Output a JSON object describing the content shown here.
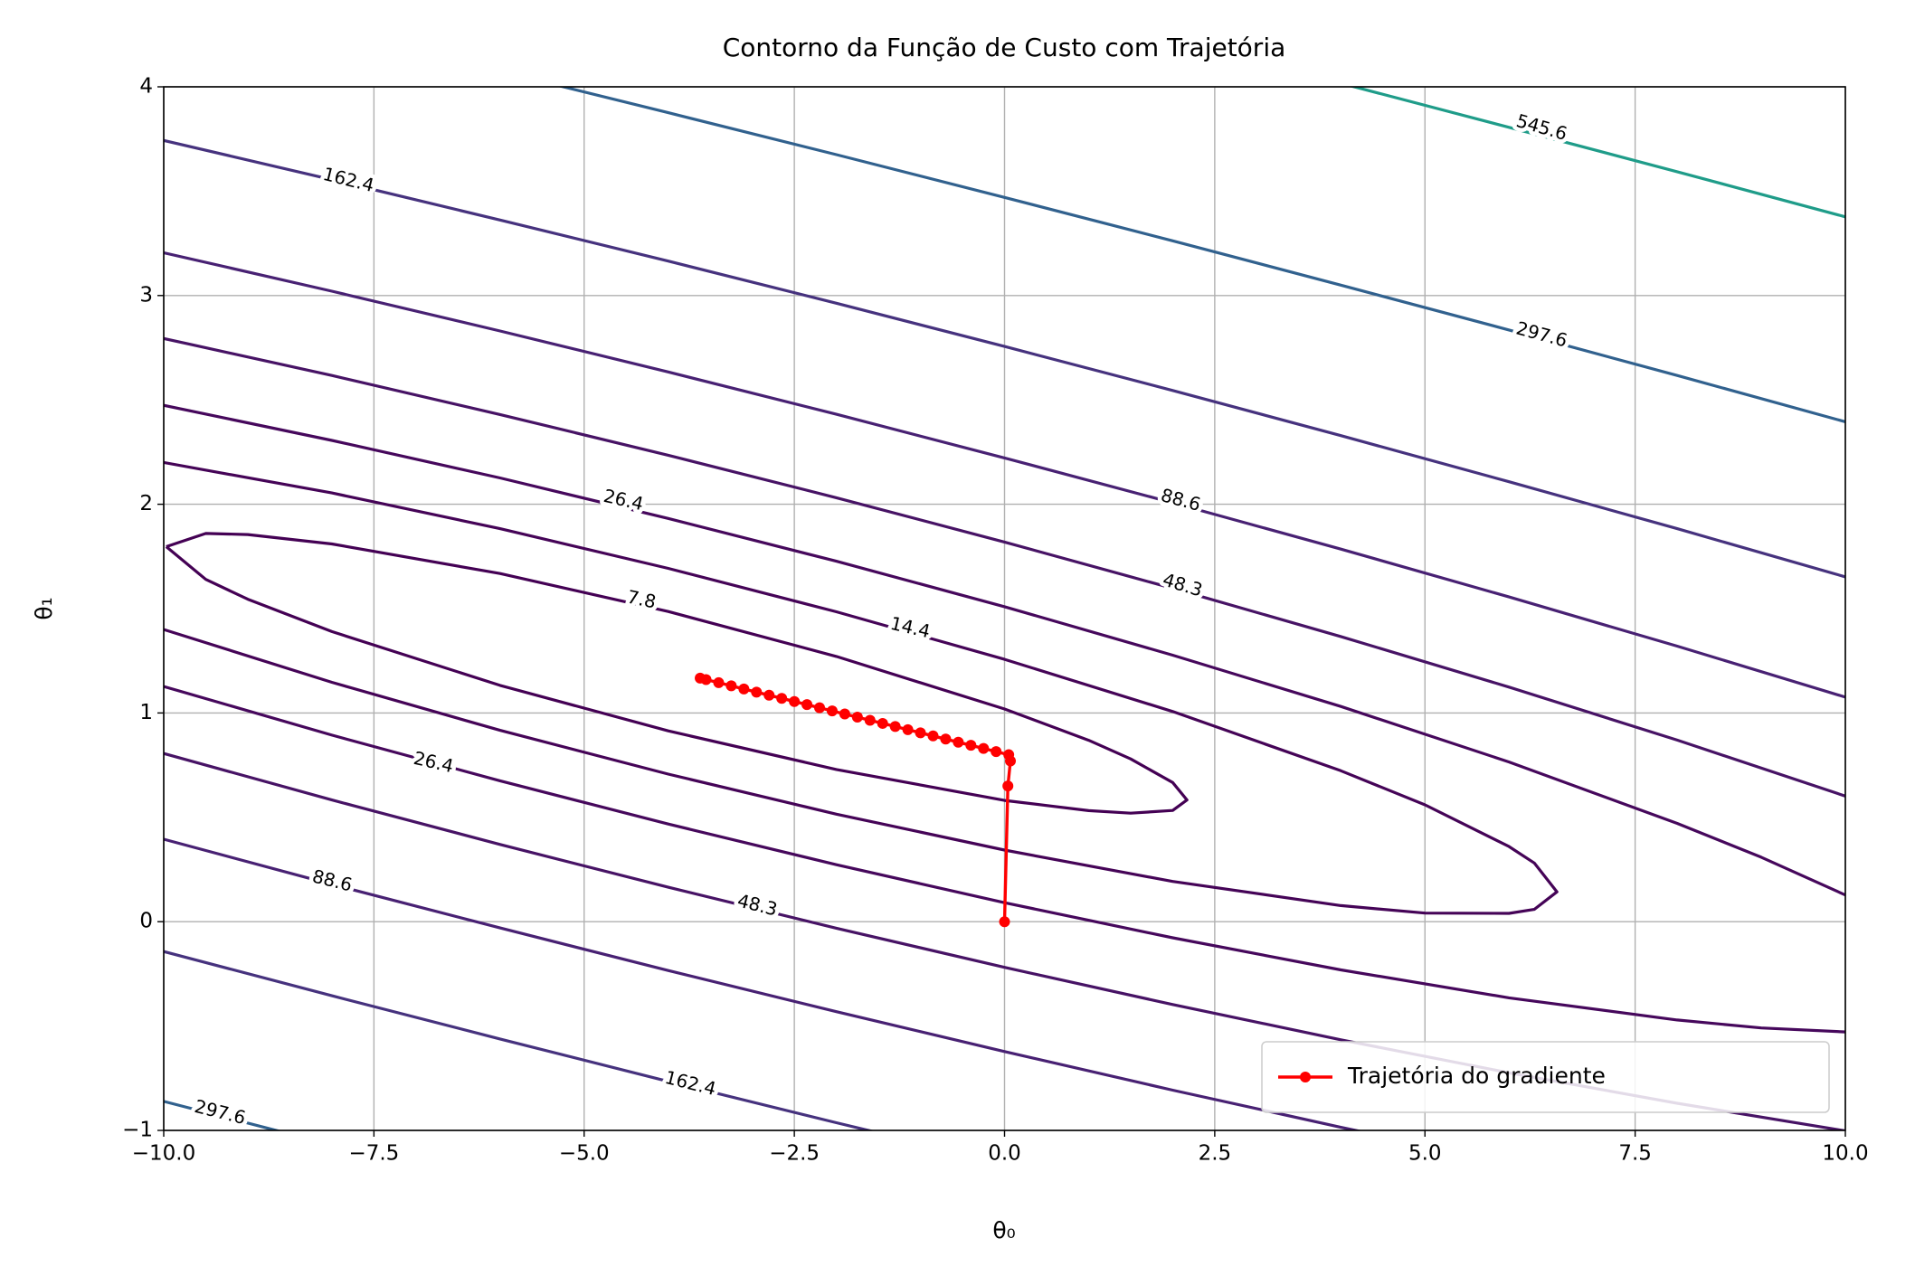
{
  "chart_data": {
    "type": "contour",
    "title": "Contorno da Função de Custo com Trajetória",
    "x_label": "θ₀",
    "y_label": "θ₁",
    "xlim": [
      -10,
      10
    ],
    "ylim": [
      -1,
      4
    ],
    "xticks": [
      {
        "value": -10,
        "label": "−10.0"
      },
      {
        "value": -7.5,
        "label": "−7.5"
      },
      {
        "value": -5,
        "label": "−5.0"
      },
      {
        "value": -2.5,
        "label": "−2.5"
      },
      {
        "value": 0,
        "label": "0.0"
      },
      {
        "value": 2.5,
        "label": "2.5"
      },
      {
        "value": 5,
        "label": "5.0"
      },
      {
        "value": 7.5,
        "label": "7.5"
      },
      {
        "value": 10,
        "label": "10.0"
      }
    ],
    "yticks": [
      {
        "value": -1,
        "label": "−1"
      },
      0,
      1,
      2,
      3,
      4
    ],
    "grid": true,
    "legend_position": "lower-right",
    "contours": [
      {
        "level": 7.8,
        "color": "#440154",
        "x": [
          -9.97,
          -9.5,
          -9,
          -8,
          -6,
          -4,
          -2,
          0,
          1,
          1.5,
          2,
          2.17,
          2,
          1.5,
          1,
          0,
          -2,
          -4,
          -6,
          -8,
          -9,
          -9.5,
          -9.97
        ],
        "y": [
          1.797,
          1.86,
          1.855,
          1.81,
          1.668,
          1.486,
          1.271,
          1.019,
          0.869,
          0.78,
          0.667,
          0.583,
          0.533,
          0.52,
          0.532,
          0.581,
          0.729,
          0.914,
          1.132,
          1.39,
          1.545,
          1.64,
          1.797
        ]
      },
      {
        "level": 14.4,
        "color": "#450457",
        "x": [
          -10,
          -8,
          -6,
          -4,
          -2,
          0,
          2,
          4,
          5,
          6,
          6.3,
          6.57,
          6.3,
          6,
          5,
          4,
          2,
          0,
          -2,
          -4,
          -6,
          -8,
          -10
        ],
        "y": [
          2.2,
          2.054,
          1.883,
          1.693,
          1.485,
          1.257,
          1.007,
          0.723,
          0.56,
          0.36,
          0.281,
          0.143,
          0.059,
          0.04,
          0.041,
          0.077,
          0.193,
          0.343,
          0.515,
          0.707,
          0.917,
          1.147,
          1.4
        ]
      },
      {
        "level": 26.4,
        "color": "#46085c",
        "x": [
          -10,
          -8,
          -6,
          -4,
          -2,
          0,
          2,
          4,
          6,
          8,
          9,
          10,
          null,
          -10,
          -8,
          -6,
          -4,
          -2,
          0,
          2,
          4,
          6,
          8,
          9,
          10
        ],
        "y": [
          2.474,
          2.306,
          2.126,
          1.932,
          1.727,
          1.509,
          1.277,
          1.031,
          0.765,
          0.471,
          0.309,
          0.128,
          null,
          1.127,
          0.894,
          0.675,
          0.468,
          0.273,
          0.091,
          -0.077,
          -0.231,
          -0.365,
          -0.471,
          -0.509,
          -0.528
        ]
      },
      {
        "level": 48.3,
        "color": "#471365",
        "x": [
          -10,
          -8,
          -6,
          -4,
          -2,
          0,
          2,
          4,
          6,
          8,
          10,
          null,
          -10,
          -8,
          -6,
          -4,
          -2,
          0,
          2,
          4,
          6,
          8,
          10
        ],
        "y": [
          2.794,
          2.617,
          2.43,
          2.235,
          2.031,
          1.819,
          1.597,
          1.366,
          1.124,
          0.87,
          0.602,
          null,
          0.806,
          0.583,
          0.37,
          0.165,
          -0.031,
          -0.219,
          -0.397,
          -0.566,
          -0.724,
          -0.87,
          -1.002
        ]
      },
      {
        "level": 88.6,
        "color": "#482173",
        "x": [
          -10,
          -8,
          -6,
          -4,
          -2,
          0,
          2,
          4,
          6,
          8,
          10,
          null,
          -10,
          -8,
          -6,
          -4,
          -2,
          0,
          2,
          4,
          6
        ],
        "y": [
          3.205,
          3.021,
          2.83,
          2.634,
          2.431,
          2.222,
          2.007,
          1.785,
          1.556,
          1.32,
          1.076,
          null,
          0.395,
          0.179,
          -0.03,
          -0.234,
          -0.431,
          -0.622,
          -0.807,
          -0.985,
          -1.156
        ]
      },
      {
        "level": 162.4,
        "color": "#46327e",
        "x": [
          -10,
          -8,
          -6,
          -4,
          -2,
          0,
          2,
          4,
          6,
          8,
          10,
          null,
          -10,
          -8,
          -6,
          -4,
          -2,
          0
        ],
        "y": [
          3.743,
          3.555,
          3.362,
          3.165,
          2.963,
          2.756,
          2.545,
          2.329,
          2.108,
          1.883,
          1.652,
          null,
          -0.143,
          -0.355,
          -0.562,
          -0.765,
          -0.963,
          -1.156
        ]
      },
      {
        "level": 297.6,
        "color": "#31618e",
        "x": [
          -6,
          -4,
          -2,
          0,
          2,
          4,
          6,
          8,
          10,
          null,
          -10,
          -8
        ],
        "y": [
          4.075,
          3.876,
          3.675,
          3.47,
          3.262,
          3.05,
          2.835,
          2.617,
          2.395,
          null,
          -0.861,
          -1.069
        ]
      },
      {
        "level": 545.6,
        "color": "#1f9c89",
        "x": [
          4,
          6,
          8,
          10
        ],
        "y": [
          4.017,
          3.806,
          3.593,
          3.377
        ]
      }
    ],
    "series": [
      {
        "name": "Trajetória do gradiente",
        "color": "#ff0000",
        "x": [
          0,
          0.04,
          0.07,
          0.05,
          -0.1,
          -0.25,
          -0.4,
          -0.55,
          -0.7,
          -0.85,
          -1.0,
          -1.15,
          -1.3,
          -1.45,
          -1.6,
          -1.75,
          -1.9,
          -2.05,
          -2.2,
          -2.35,
          -2.5,
          -2.65,
          -2.8,
          -2.95,
          -3.1,
          -3.25,
          -3.4,
          -3.55,
          -3.62
        ],
        "y": [
          0,
          0.65,
          0.77,
          0.8,
          0.815,
          0.83,
          0.845,
          0.86,
          0.875,
          0.89,
          0.905,
          0.92,
          0.935,
          0.95,
          0.965,
          0.98,
          0.995,
          1.01,
          1.025,
          1.04,
          1.055,
          1.07,
          1.085,
          1.1,
          1.115,
          1.13,
          1.145,
          1.16,
          1.167
        ]
      }
    ]
  }
}
